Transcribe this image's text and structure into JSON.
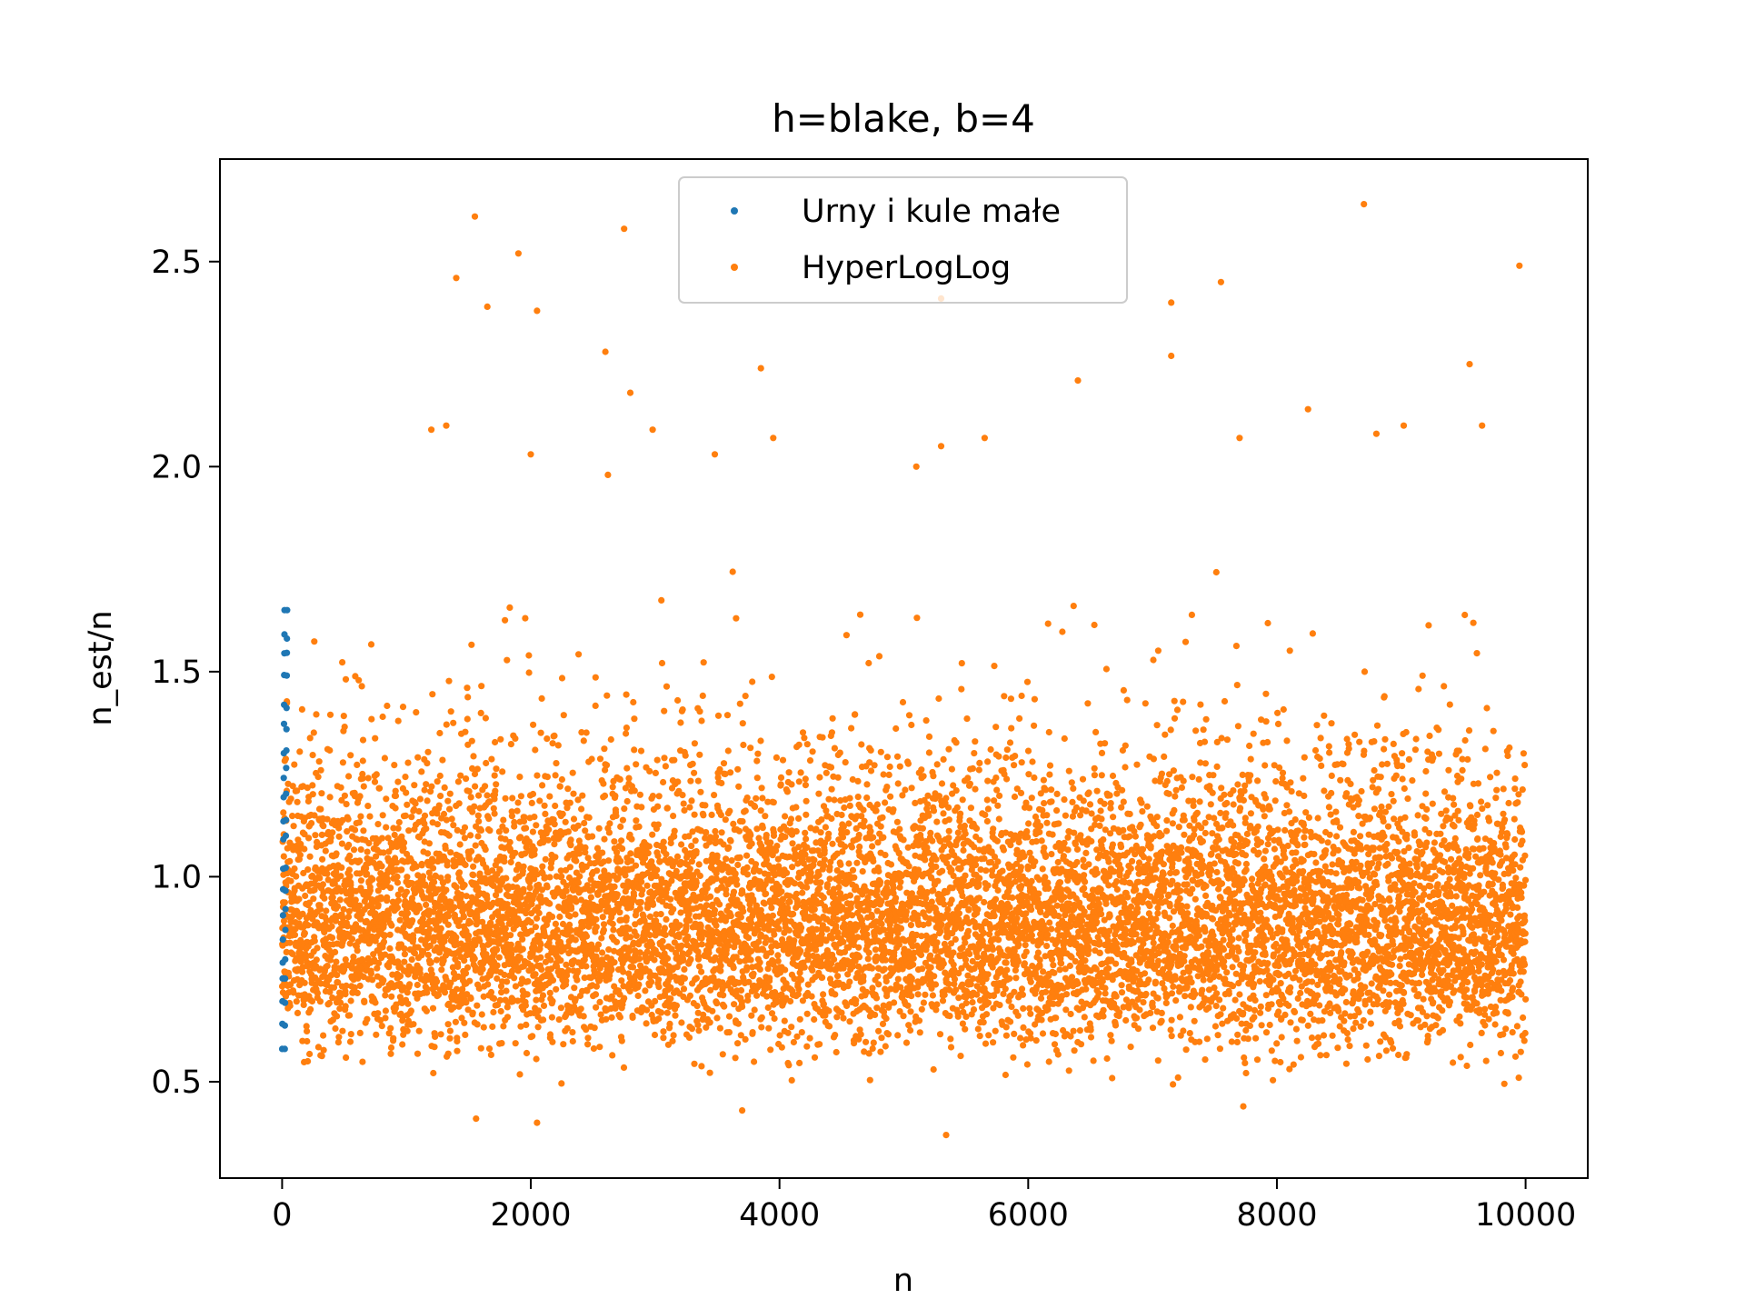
{
  "chart_data": {
    "type": "scatter",
    "title": "h=blake, b=4",
    "xlabel": "n",
    "ylabel": "n_est/n",
    "xlim": [
      -500,
      10500
    ],
    "ylim": [
      0.265,
      2.75
    ],
    "xticks": [
      0,
      2000,
      4000,
      6000,
      8000,
      10000
    ],
    "xtick_labels": [
      "0",
      "2000",
      "4000",
      "6000",
      "8000",
      "10000"
    ],
    "yticks": [
      0.5,
      1.0,
      1.5,
      2.0,
      2.5
    ],
    "ytick_labels": [
      "0.5",
      "1.0",
      "1.5",
      "2.0",
      "2.5"
    ],
    "grid": false,
    "legend_position": "upper-center",
    "series": [
      {
        "name": "Urny i kule małe",
        "color": "#1f77b4",
        "x_range": [
          1,
          40
        ],
        "points_count": 40,
        "y_min": 0.58,
        "y_max": 1.65
      },
      {
        "name": "HyperLogLog",
        "color": "#ff7f0e",
        "x_range": [
          1,
          10000
        ],
        "points_count": 10000,
        "y_center": 0.9,
        "y_min": 0.37,
        "y_max": 2.64,
        "outliers": [
          {
            "x": 1550,
            "y": 2.61
          },
          {
            "x": 1900,
            "y": 2.52
          },
          {
            "x": 2750,
            "y": 2.58
          },
          {
            "x": 1400,
            "y": 2.46
          },
          {
            "x": 1650,
            "y": 2.39
          },
          {
            "x": 2050,
            "y": 2.38
          },
          {
            "x": 2600,
            "y": 2.28
          },
          {
            "x": 3850,
            "y": 2.24
          },
          {
            "x": 5300,
            "y": 2.41
          },
          {
            "x": 7150,
            "y": 2.4
          },
          {
            "x": 7150,
            "y": 2.27
          },
          {
            "x": 7550,
            "y": 2.45
          },
          {
            "x": 8700,
            "y": 2.64
          },
          {
            "x": 9950,
            "y": 2.49
          },
          {
            "x": 9550,
            "y": 2.25
          },
          {
            "x": 6400,
            "y": 2.21
          },
          {
            "x": 2800,
            "y": 2.18
          },
          {
            "x": 8250,
            "y": 2.14
          },
          {
            "x": 1200,
            "y": 2.09
          },
          {
            "x": 1320,
            "y": 2.1
          },
          {
            "x": 2980,
            "y": 2.09
          },
          {
            "x": 3950,
            "y": 2.07
          },
          {
            "x": 9020,
            "y": 2.1
          },
          {
            "x": 9650,
            "y": 2.1
          },
          {
            "x": 5650,
            "y": 2.07
          },
          {
            "x": 5300,
            "y": 2.05
          },
          {
            "x": 7700,
            "y": 2.07
          },
          {
            "x": 8800,
            "y": 2.08
          },
          {
            "x": 2000,
            "y": 2.03
          },
          {
            "x": 3480,
            "y": 2.03
          },
          {
            "x": 5100,
            "y": 2.0
          },
          {
            "x": 2620,
            "y": 1.98
          },
          {
            "x": 5340,
            "y": 0.37
          },
          {
            "x": 1560,
            "y": 0.41
          },
          {
            "x": 2050,
            "y": 0.4
          },
          {
            "x": 3700,
            "y": 0.43
          },
          {
            "x": 7730,
            "y": 0.44
          }
        ]
      }
    ]
  }
}
